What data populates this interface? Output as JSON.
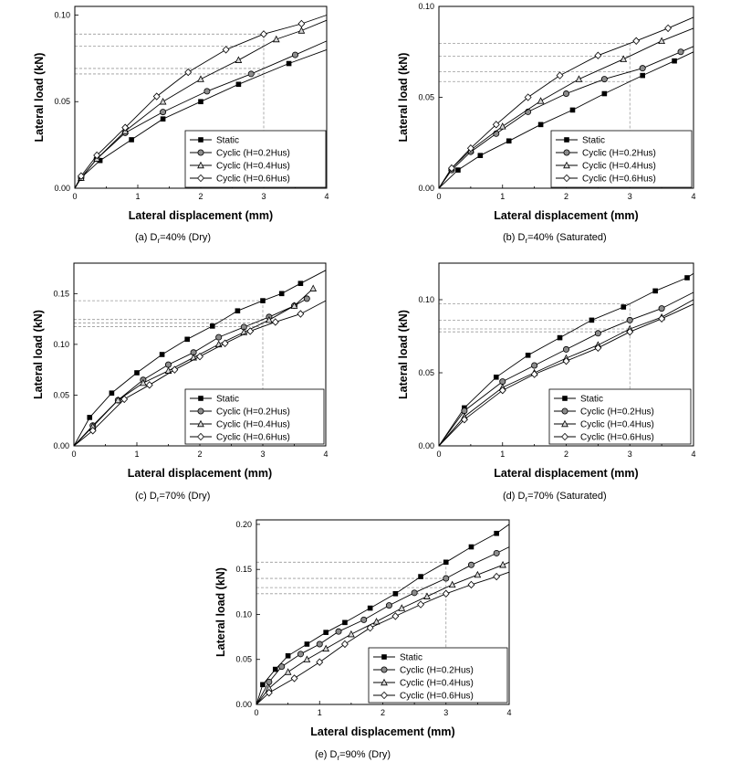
{
  "chart_data": [
    {
      "type": "line",
      "caption": {
        "pre": "(a)  D",
        "sub": "r",
        "post": "=40%  (Dry)"
      },
      "xlabel": "Lateral displacement (mm)",
      "ylabel": "Lateral load (kN)",
      "xlim": [
        0,
        4
      ],
      "ylim": [
        0,
        0.105
      ],
      "xticks": [
        "0",
        "1",
        "2",
        "3",
        "4"
      ],
      "yticks": [
        {
          "v": 0,
          "t": "0.00"
        },
        {
          "v": 0.05,
          "t": "0.05"
        },
        {
          "v": 0.1,
          "t": "0.10"
        }
      ],
      "ref_x": 3,
      "series": [
        {
          "name": "Static",
          "marker": "square",
          "x": [
            0,
            0.1,
            0.4,
            0.9,
            1.4,
            2.0,
            2.6,
            3.4,
            4.0
          ],
          "y": [
            0,
            0.006,
            0.016,
            0.028,
            0.04,
            0.05,
            0.06,
            0.072,
            0.08
          ]
        },
        {
          "name": "Cyclic (H=0.2Hus)",
          "marker": "circle",
          "x": [
            0,
            0.1,
            0.35,
            0.8,
            1.4,
            2.1,
            2.8,
            3.5,
            4.0
          ],
          "y": [
            0,
            0.006,
            0.017,
            0.032,
            0.044,
            0.056,
            0.066,
            0.077,
            0.085
          ]
        },
        {
          "name": "Cyclic (H=0.4Hus)",
          "marker": "triangle",
          "x": [
            0,
            0.1,
            0.35,
            0.8,
            1.4,
            2.0,
            2.6,
            3.2,
            3.6,
            4.0
          ],
          "y": [
            0,
            0.006,
            0.017,
            0.033,
            0.05,
            0.063,
            0.074,
            0.086,
            0.091,
            0.097
          ]
        },
        {
          "name": "Cyclic (H=0.6Hus)",
          "marker": "diamond",
          "x": [
            0,
            0.1,
            0.35,
            0.8,
            1.3,
            1.8,
            2.4,
            3.0,
            3.6,
            4.0
          ],
          "y": [
            0,
            0.007,
            0.019,
            0.035,
            0.053,
            0.067,
            0.08,
            0.089,
            0.095,
            0.1
          ]
        }
      ]
    },
    {
      "type": "line",
      "caption": {
        "pre": "(b)  D",
        "sub": "r",
        "post": "=40%  (Saturated)"
      },
      "xlabel": "Lateral displacement (mm)",
      "ylabel": "Lateral load (kN)",
      "xlim": [
        0,
        4
      ],
      "ylim": [
        0,
        0.1
      ],
      "xticks": [
        "0",
        "1",
        "2",
        "3",
        "4"
      ],
      "yticks": [
        {
          "v": 0,
          "t": "0.00"
        },
        {
          "v": 0.05,
          "t": "0.05"
        },
        {
          "v": 0.1,
          "t": "0.10"
        }
      ],
      "ref_x": 3,
      "series": [
        {
          "name": "Static",
          "marker": "square",
          "x": [
            0,
            0.3,
            0.65,
            1.1,
            1.6,
            2.1,
            2.6,
            3.2,
            3.7,
            4.0
          ],
          "y": [
            0,
            0.01,
            0.018,
            0.026,
            0.035,
            0.043,
            0.052,
            0.062,
            0.07,
            0.075
          ]
        },
        {
          "name": "Cyclic (H=0.2Hus)",
          "marker": "circle",
          "x": [
            0,
            0.2,
            0.5,
            0.9,
            1.4,
            2.0,
            2.6,
            3.2,
            3.8,
            4.0
          ],
          "y": [
            0,
            0.01,
            0.02,
            0.03,
            0.042,
            0.052,
            0.06,
            0.066,
            0.075,
            0.078
          ]
        },
        {
          "name": "Cyclic (H=0.4Hus)",
          "marker": "triangle",
          "x": [
            0,
            0.2,
            0.5,
            1.0,
            1.6,
            2.2,
            2.9,
            3.5,
            4.0
          ],
          "y": [
            0,
            0.011,
            0.021,
            0.034,
            0.048,
            0.06,
            0.071,
            0.081,
            0.088
          ]
        },
        {
          "name": "Cyclic (H=0.6Hus)",
          "marker": "diamond",
          "x": [
            0,
            0.2,
            0.5,
            0.9,
            1.4,
            1.9,
            2.5,
            3.1,
            3.6,
            4.0
          ],
          "y": [
            0,
            0.011,
            0.022,
            0.035,
            0.05,
            0.062,
            0.073,
            0.081,
            0.088,
            0.094
          ]
        }
      ]
    },
    {
      "type": "line",
      "caption": {
        "pre": "(c)  D",
        "sub": "r",
        "post": "=70%  (Dry)"
      },
      "xlabel": "Lateral displacement (mm)",
      "ylabel": "Lateral load (kN)",
      "xlim": [
        0,
        4
      ],
      "ylim": [
        0,
        0.18
      ],
      "xticks": [
        "0",
        "1",
        "2",
        "3",
        "4"
      ],
      "yticks": [
        {
          "v": 0,
          "t": "0.00"
        },
        {
          "v": 0.05,
          "t": "0.05"
        },
        {
          "v": 0.1,
          "t": "0.10"
        },
        {
          "v": 0.15,
          "t": "0.15"
        }
      ],
      "ref_x": 3,
      "series": [
        {
          "name": "Static",
          "marker": "square",
          "x": [
            0,
            0.25,
            0.6,
            1.0,
            1.4,
            1.8,
            2.2,
            2.6,
            3.0,
            3.3,
            3.6,
            4.0
          ],
          "y": [
            0,
            0.028,
            0.052,
            0.072,
            0.09,
            0.105,
            0.118,
            0.133,
            0.143,
            0.15,
            0.16,
            0.173
          ]
        },
        {
          "name": "Cyclic (H=0.2Hus)",
          "marker": "circle",
          "x": [
            0,
            0.3,
            0.7,
            1.1,
            1.5,
            1.9,
            2.3,
            2.7,
            3.1,
            3.5,
            3.7
          ],
          "y": [
            0,
            0.02,
            0.045,
            0.065,
            0.08,
            0.092,
            0.107,
            0.117,
            0.127,
            0.138,
            0.145
          ]
        },
        {
          "name": "Cyclic (H=0.4Hus)",
          "marker": "triangle",
          "x": [
            0,
            0.3,
            0.7,
            1.1,
            1.5,
            1.9,
            2.3,
            2.7,
            3.1,
            3.5,
            3.8
          ],
          "y": [
            0,
            0.019,
            0.045,
            0.062,
            0.074,
            0.087,
            0.1,
            0.112,
            0.124,
            0.138,
            0.155
          ]
        },
        {
          "name": "Cyclic (H=0.6Hus)",
          "marker": "diamond",
          "x": [
            0,
            0.3,
            0.8,
            1.2,
            1.6,
            2.0,
            2.4,
            2.8,
            3.2,
            3.6,
            4.0
          ],
          "y": [
            0,
            0.015,
            0.046,
            0.06,
            0.075,
            0.088,
            0.101,
            0.113,
            0.122,
            0.13,
            0.143
          ]
        }
      ]
    },
    {
      "type": "line",
      "caption": {
        "pre": "(d)  D",
        "sub": "r",
        "post": "=70%  (Saturated)"
      },
      "xlabel": "Lateral displacement (mm)",
      "ylabel": "Lateral load (kN)",
      "xlim": [
        0,
        4
      ],
      "ylim": [
        0,
        0.125
      ],
      "xticks": [
        "0",
        "1",
        "2",
        "3",
        "4"
      ],
      "yticks": [
        {
          "v": 0,
          "t": "0.00"
        },
        {
          "v": 0.05,
          "t": "0.05"
        },
        {
          "v": 0.1,
          "t": "0.10"
        }
      ],
      "ref_x": 3,
      "series": [
        {
          "name": "Static",
          "marker": "square",
          "x": [
            0,
            0.4,
            0.9,
            1.4,
            1.9,
            2.4,
            2.9,
            3.4,
            3.9,
            4.0
          ],
          "y": [
            0,
            0.026,
            0.047,
            0.062,
            0.074,
            0.086,
            0.095,
            0.106,
            0.115,
            0.118
          ]
        },
        {
          "name": "Cyclic (H=0.2Hus)",
          "marker": "circle",
          "x": [
            0,
            0.4,
            1.0,
            1.5,
            2.0,
            2.5,
            3.0,
            3.5,
            4.0
          ],
          "y": [
            0,
            0.024,
            0.044,
            0.055,
            0.066,
            0.077,
            0.086,
            0.094,
            0.105
          ]
        },
        {
          "name": "Cyclic (H=0.4Hus)",
          "marker": "triangle",
          "x": [
            0,
            0.4,
            1.0,
            1.5,
            2.0,
            2.5,
            3.0,
            3.5,
            4.0
          ],
          "y": [
            0,
            0.02,
            0.04,
            0.05,
            0.06,
            0.069,
            0.08,
            0.088,
            0.1
          ]
        },
        {
          "name": "Cyclic (H=0.6Hus)",
          "marker": "diamond",
          "x": [
            0,
            0.4,
            1.0,
            1.5,
            2.0,
            2.5,
            3.0,
            3.5,
            4.0
          ],
          "y": [
            0,
            0.018,
            0.038,
            0.049,
            0.058,
            0.067,
            0.078,
            0.087,
            0.097
          ]
        }
      ]
    },
    {
      "type": "line",
      "caption": {
        "pre": "(e)  D",
        "sub": "r",
        "post": "=90%  (Dry)"
      },
      "xlabel": "Lateral displacement (mm)",
      "ylabel": "Lateral load (kN)",
      "xlim": [
        0,
        4
      ],
      "ylim": [
        0,
        0.205
      ],
      "xticks": [
        "0",
        "1",
        "2",
        "3",
        "4"
      ],
      "yticks": [
        {
          "v": 0,
          "t": "0.00"
        },
        {
          "v": 0.05,
          "t": "0.05"
        },
        {
          "v": 0.1,
          "t": "0.10"
        },
        {
          "v": 0.15,
          "t": "0.15"
        },
        {
          "v": 0.2,
          "t": "0.20"
        }
      ],
      "ref_x": 3,
      "series": [
        {
          "name": "Static",
          "marker": "square",
          "x": [
            0,
            0.1,
            0.3,
            0.5,
            0.8,
            1.1,
            1.4,
            1.8,
            2.2,
            2.6,
            3.0,
            3.4,
            3.8,
            4.0
          ],
          "y": [
            0,
            0.022,
            0.039,
            0.054,
            0.067,
            0.08,
            0.091,
            0.107,
            0.123,
            0.142,
            0.158,
            0.175,
            0.19,
            0.2
          ]
        },
        {
          "name": "Cyclic (H=0.2Hus)",
          "marker": "circle",
          "x": [
            0,
            0.2,
            0.4,
            0.7,
            1.0,
            1.3,
            1.7,
            2.1,
            2.5,
            3.0,
            3.4,
            3.8,
            4.0
          ],
          "y": [
            0,
            0.025,
            0.042,
            0.056,
            0.067,
            0.081,
            0.094,
            0.11,
            0.124,
            0.14,
            0.155,
            0.168,
            0.175
          ]
        },
        {
          "name": "Cyclic (H=0.4Hus)",
          "marker": "triangle",
          "x": [
            0,
            0.2,
            0.5,
            0.8,
            1.1,
            1.5,
            1.9,
            2.3,
            2.7,
            3.1,
            3.5,
            3.9,
            4.0
          ],
          "y": [
            0,
            0.018,
            0.036,
            0.05,
            0.062,
            0.078,
            0.092,
            0.107,
            0.12,
            0.133,
            0.144,
            0.155,
            0.158
          ]
        },
        {
          "name": "Cyclic (H=0.6Hus)",
          "marker": "diamond",
          "x": [
            0,
            0.2,
            0.6,
            1.0,
            1.4,
            1.8,
            2.2,
            2.6,
            3.0,
            3.4,
            3.8,
            4.0
          ],
          "y": [
            0,
            0.013,
            0.029,
            0.047,
            0.067,
            0.085,
            0.098,
            0.111,
            0.123,
            0.133,
            0.142,
            0.147
          ]
        }
      ]
    }
  ]
}
